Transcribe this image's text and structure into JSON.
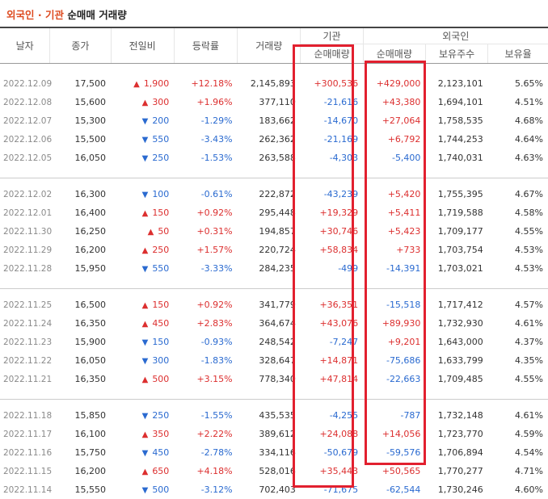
{
  "title": {
    "part1": "외국인",
    "dot": "·",
    "part2": "기관",
    "rest": "순매매 거래량"
  },
  "headers": {
    "date": "날자",
    "close": "종가",
    "change": "전일비",
    "rate": "등락률",
    "volume": "거래량",
    "institution": "기관",
    "foreign": "외국인",
    "inst_net": "순매매량",
    "foreign_net": "순매매량",
    "holdings": "보유주수",
    "hold_ratio": "보유율"
  },
  "colors": {
    "up": "#dc2f2f",
    "down": "#2a6ad0",
    "highlight_box": "#e2202f",
    "title_accent": "#dd4a1f"
  },
  "icons": {
    "up": "up-triangle-icon",
    "down": "down-triangle-icon"
  },
  "rows": [
    {
      "date": "2022.12.09",
      "close": "17,500",
      "dir": "up",
      "change": "1,900",
      "rate": "+12.18%",
      "volume": "2,145,893",
      "inst": "+300,536",
      "foreign": "+429,000",
      "holdings": "2,123,101",
      "ratio": "5.65%"
    },
    {
      "date": "2022.12.08",
      "close": "15,600",
      "dir": "up",
      "change": "300",
      "rate": "+1.96%",
      "volume": "377,110",
      "inst": "-21,616",
      "foreign": "+43,380",
      "holdings": "1,694,101",
      "ratio": "4.51%"
    },
    {
      "date": "2022.12.07",
      "close": "15,300",
      "dir": "down",
      "change": "200",
      "rate": "-1.29%",
      "volume": "183,662",
      "inst": "-14,670",
      "foreign": "+27,064",
      "holdings": "1,758,535",
      "ratio": "4.68%"
    },
    {
      "date": "2022.12.06",
      "close": "15,500",
      "dir": "down",
      "change": "550",
      "rate": "-3.43%",
      "volume": "262,362",
      "inst": "-21,169",
      "foreign": "+6,792",
      "holdings": "1,744,253",
      "ratio": "4.64%"
    },
    {
      "date": "2022.12.05",
      "close": "16,050",
      "dir": "down",
      "change": "250",
      "rate": "-1.53%",
      "volume": "263,588",
      "inst": "-4,303",
      "foreign": "-5,400",
      "holdings": "1,740,031",
      "ratio": "4.63%"
    },
    {
      "date": "2022.12.02",
      "close": "16,300",
      "dir": "down",
      "change": "100",
      "rate": "-0.61%",
      "volume": "222,872",
      "inst": "-43,239",
      "foreign": "+5,420",
      "holdings": "1,755,395",
      "ratio": "4.67%"
    },
    {
      "date": "2022.12.01",
      "close": "16,400",
      "dir": "up",
      "change": "150",
      "rate": "+0.92%",
      "volume": "295,448",
      "inst": "+19,329",
      "foreign": "+5,411",
      "holdings": "1,719,588",
      "ratio": "4.58%"
    },
    {
      "date": "2022.11.30",
      "close": "16,250",
      "dir": "up",
      "change": "50",
      "rate": "+0.31%",
      "volume": "194,857",
      "inst": "+30,746",
      "foreign": "+5,423",
      "holdings": "1,709,177",
      "ratio": "4.55%"
    },
    {
      "date": "2022.11.29",
      "close": "16,200",
      "dir": "up",
      "change": "250",
      "rate": "+1.57%",
      "volume": "220,724",
      "inst": "+58,834",
      "foreign": "+733",
      "holdings": "1,703,754",
      "ratio": "4.53%"
    },
    {
      "date": "2022.11.28",
      "close": "15,950",
      "dir": "down",
      "change": "550",
      "rate": "-3.33%",
      "volume": "284,235",
      "inst": "-499",
      "foreign": "-14,391",
      "holdings": "1,703,021",
      "ratio": "4.53%"
    },
    {
      "date": "2022.11.25",
      "close": "16,500",
      "dir": "up",
      "change": "150",
      "rate": "+0.92%",
      "volume": "341,779",
      "inst": "+36,351",
      "foreign": "-15,518",
      "holdings": "1,717,412",
      "ratio": "4.57%"
    },
    {
      "date": "2022.11.24",
      "close": "16,350",
      "dir": "up",
      "change": "450",
      "rate": "+2.83%",
      "volume": "364,674",
      "inst": "+43,076",
      "foreign": "+89,930",
      "holdings": "1,732,930",
      "ratio": "4.61%"
    },
    {
      "date": "2022.11.23",
      "close": "15,900",
      "dir": "down",
      "change": "150",
      "rate": "-0.93%",
      "volume": "248,542",
      "inst": "-7,247",
      "foreign": "+9,201",
      "holdings": "1,643,000",
      "ratio": "4.37%"
    },
    {
      "date": "2022.11.22",
      "close": "16,050",
      "dir": "down",
      "change": "300",
      "rate": "-1.83%",
      "volume": "328,647",
      "inst": "+14,871",
      "foreign": "-75,686",
      "holdings": "1,633,799",
      "ratio": "4.35%"
    },
    {
      "date": "2022.11.21",
      "close": "16,350",
      "dir": "up",
      "change": "500",
      "rate": "+3.15%",
      "volume": "778,340",
      "inst": "+47,814",
      "foreign": "-22,663",
      "holdings": "1,709,485",
      "ratio": "4.55%"
    },
    {
      "date": "2022.11.18",
      "close": "15,850",
      "dir": "down",
      "change": "250",
      "rate": "-1.55%",
      "volume": "435,535",
      "inst": "-4,255",
      "foreign": "-787",
      "holdings": "1,732,148",
      "ratio": "4.61%"
    },
    {
      "date": "2022.11.17",
      "close": "16,100",
      "dir": "up",
      "change": "350",
      "rate": "+2.22%",
      "volume": "389,612",
      "inst": "+24,088",
      "foreign": "+14,056",
      "holdings": "1,723,770",
      "ratio": "4.59%"
    },
    {
      "date": "2022.11.16",
      "close": "15,750",
      "dir": "down",
      "change": "450",
      "rate": "-2.78%",
      "volume": "334,116",
      "inst": "-50,679",
      "foreign": "-59,576",
      "holdings": "1,706,894",
      "ratio": "4.54%"
    },
    {
      "date": "2022.11.15",
      "close": "16,200",
      "dir": "up",
      "change": "650",
      "rate": "+4.18%",
      "volume": "528,016",
      "inst": "+35,443",
      "foreign": "+50,565",
      "holdings": "1,770,277",
      "ratio": "4.71%"
    },
    {
      "date": "2022.11.14",
      "close": "15,550",
      "dir": "down",
      "change": "500",
      "rate": "-3.12%",
      "volume": "702,403",
      "inst": "-71,675",
      "foreign": "-62,544",
      "holdings": "1,730,246",
      "ratio": "4.60%"
    }
  ]
}
